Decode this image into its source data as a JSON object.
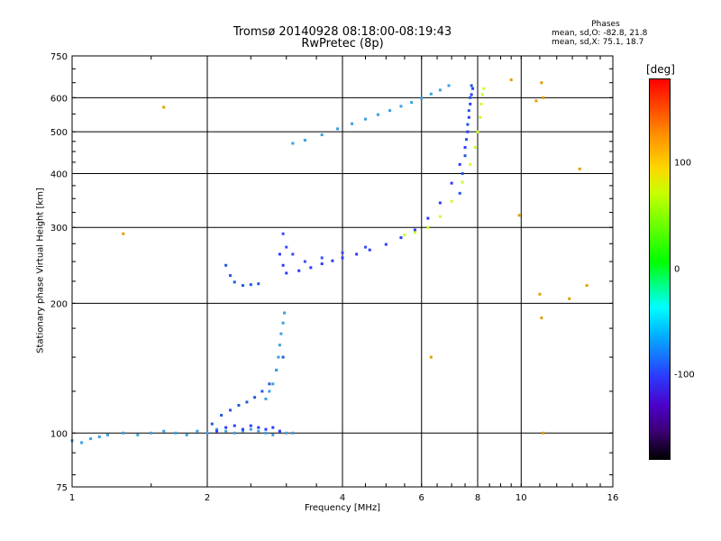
{
  "chart_data": {
    "type": "scatter",
    "title": "Tromsø 20140928 08:18:00-08:19:43",
    "subtitle": "RwPretec (8p)",
    "xlabel": "Frequency [MHz]",
    "ylabel": "Stationary phase Virtual Height [km]",
    "x_scale": "log",
    "y_scale": "log",
    "xlim": [
      1,
      16
    ],
    "ylim": [
      75,
      750
    ],
    "x_ticks": [
      1,
      2,
      4,
      6,
      8,
      10,
      16
    ],
    "x_tick_labels": [
      "1",
      "2",
      "4",
      "6",
      "8",
      "10",
      "16"
    ],
    "y_ticks": [
      75,
      100,
      200,
      300,
      400,
      500,
      600,
      750
    ],
    "y_tick_labels": [
      "75",
      "100",
      "200",
      "300",
      "400",
      "500",
      "600",
      "750"
    ],
    "grid": true,
    "phases": {
      "header": "Phases",
      "line_o": "mean, sd,O: -82.8, 21.8",
      "line_x": "mean, sd,X: 75.1, 18.7"
    },
    "colorbar": {
      "title": "[deg]",
      "ticks": [
        100,
        0,
        -100
      ],
      "tick_labels": [
        "100",
        "0",
        "-100"
      ],
      "range": [
        -180,
        180
      ],
      "colors": [
        "#ff0000",
        "#ffd400",
        "#00ff00",
        "#00ffff",
        "#2a3cff",
        "#3a0070",
        "#000000"
      ]
    },
    "series": [
      {
        "mode": "E-layer",
        "color": "#3aa0e0",
        "x": [
          1.0,
          1.05,
          1.1,
          1.15,
          1.2,
          1.3,
          1.4,
          1.5,
          1.6,
          1.7,
          1.8,
          1.9,
          2.0,
          2.1,
          2.2,
          2.3,
          2.4,
          2.5,
          2.6,
          2.7,
          2.8,
          2.9,
          3.0,
          3.1
        ],
        "y": [
          96,
          95,
          97,
          98,
          99,
          100,
          99,
          100,
          101,
          100,
          99,
          101,
          100,
          102,
          101,
          100,
          101,
          102,
          101,
          100,
          99,
          101,
          100,
          100
        ]
      },
      {
        "mode": "E-trace",
        "color": "#1e5ae0",
        "x": [
          2.05,
          2.15,
          2.25,
          2.35,
          2.45,
          2.55,
          2.65,
          2.75,
          2.85,
          2.95
        ],
        "y": [
          105,
          110,
          113,
          116,
          118,
          121,
          125,
          130,
          140,
          150
        ]
      },
      {
        "mode": "Es-patch",
        "color": "#2a3cff",
        "x": [
          2.1,
          2.2,
          2.3,
          2.4,
          2.5,
          2.6,
          2.7,
          2.8,
          2.9
        ],
        "y": [
          101,
          103,
          104,
          102,
          104,
          103,
          102,
          103,
          101
        ]
      },
      {
        "mode": "E-cusp",
        "color": "#3aa0e0",
        "x": [
          2.7,
          2.75,
          2.8,
          2.85,
          2.88,
          2.9,
          2.92,
          2.95,
          2.97
        ],
        "y": [
          120,
          125,
          130,
          140,
          150,
          160,
          170,
          180,
          190
        ]
      },
      {
        "mode": "F1-trace",
        "color": "#1e5ae0",
        "x": [
          2.2,
          2.25,
          2.3,
          2.4,
          2.5,
          2.6
        ],
        "y": [
          245,
          232,
          224,
          220,
          221,
          222
        ]
      },
      {
        "mode": "F2-O",
        "color": "#2a3cff",
        "x": [
          2.9,
          2.95,
          3.0,
          3.2,
          3.4,
          3.6,
          3.8,
          4.0,
          4.3,
          4.6,
          5.0,
          5.4,
          5.8,
          6.2,
          6.6,
          7.0,
          7.3,
          7.5,
          7.6,
          7.65,
          7.7,
          7.75,
          7.8
        ],
        "y": [
          260,
          245,
          235,
          238,
          242,
          247,
          251,
          255,
          260,
          266,
          274,
          284,
          296,
          315,
          342,
          380,
          420,
          460,
          500,
          540,
          580,
          610,
          630
        ]
      },
      {
        "mode": "F2-O-upper",
        "color": "#3a4cff",
        "x": [
          2.95,
          3.0,
          3.1,
          3.3,
          3.6,
          4.0,
          4.5
        ],
        "y": [
          290,
          270,
          260,
          250,
          255,
          262,
          270
        ]
      },
      {
        "mode": "F2-X",
        "color": "#c8ff2a",
        "x": [
          5.5,
          5.8,
          6.2,
          6.6,
          7.0,
          7.4,
          7.7,
          7.9,
          8.0,
          8.1,
          8.15,
          8.2,
          8.25
        ],
        "y": [
          288,
          292,
          300,
          318,
          345,
          382,
          420,
          460,
          500,
          540,
          580,
          610,
          630
        ]
      },
      {
        "mode": "F2-X-spread",
        "color": "#1e5ae0",
        "x": [
          7.3,
          7.4,
          7.5,
          7.55,
          7.6,
          7.65,
          7.7,
          7.75
        ],
        "y": [
          360,
          400,
          440,
          480,
          520,
          560,
          600,
          640
        ]
      },
      {
        "mode": "Upper-trace",
        "color": "#3aa0e0",
        "x": [
          3.1,
          3.3,
          3.6,
          3.9,
          4.2,
          4.5,
          4.8,
          5.1,
          5.4,
          5.7,
          6.0,
          6.3,
          6.6,
          6.9
        ],
        "y": [
          470,
          478,
          492,
          508,
          522,
          535,
          548,
          560,
          573,
          585,
          598,
          612,
          625,
          640
        ]
      },
      {
        "mode": "Scattered",
        "color": "#e0a000",
        "x": [
          1.3,
          1.6,
          6.3,
          9.5,
          9.9,
          11.1,
          11.2,
          13.5,
          12.8,
          11.0,
          11.1,
          11.2,
          10.8,
          14.0
        ],
        "y": [
          290,
          570,
          150,
          660,
          320,
          650,
          600,
          410,
          205,
          210,
          185,
          100,
          590,
          220
        ]
      }
    ]
  }
}
